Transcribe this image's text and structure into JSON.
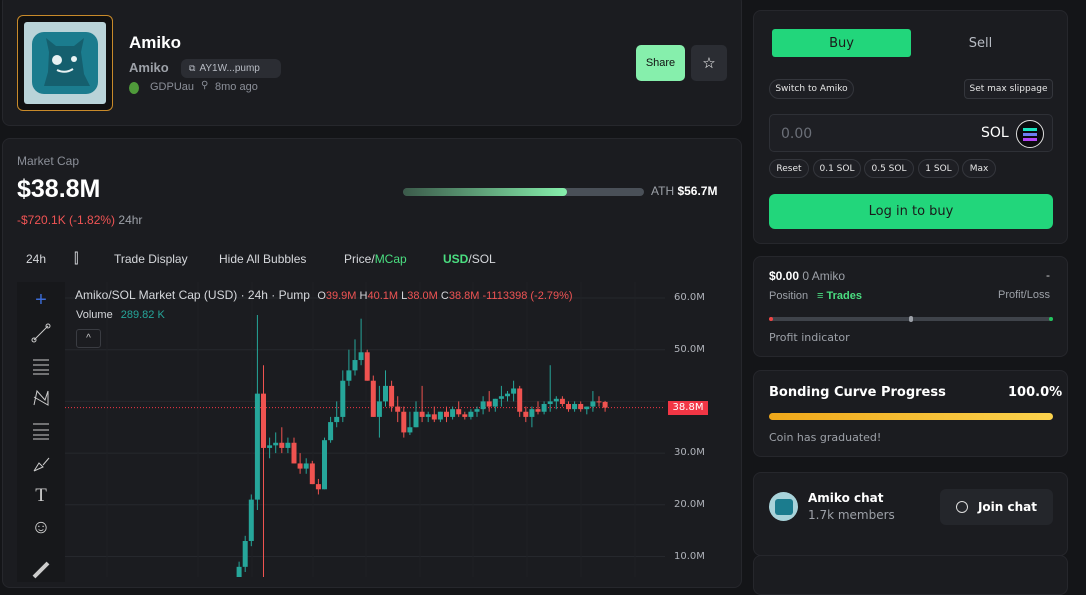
{
  "token": {
    "name": "Amiko",
    "symbol": "Amiko",
    "address_short": "AY1W...pump",
    "creator": "GDPUau",
    "age": "8mo ago",
    "share_label": "Share",
    "favorite_icon": "star-icon"
  },
  "market": {
    "label": "Market Cap",
    "value": "$38.8M",
    "change": "-$720.1K (-1.82%)",
    "change_period": "24hr",
    "ath_label": "ATH",
    "ath_value": "$56.7M",
    "ath_progress_pct": 68
  },
  "chart_toolbar": {
    "interval": "24h",
    "trade_display": "Trade Display",
    "hide_bubbles": "Hide All Bubbles",
    "price": "Price",
    "mcap": "MCap",
    "usd": "USD",
    "sol": "SOL",
    "slash": "/"
  },
  "chart_legend": {
    "title": "Amiko/SOL Market Cap (USD) · 24h · Pump",
    "o_label": "O",
    "o": "39.9M",
    "h_label": "H",
    "h": "40.1M",
    "l_label": "L",
    "l": "38.0M",
    "c_label": "C",
    "c": "38.8M",
    "change": "-1113398 (-2.79%)",
    "volume_label": "Volume",
    "volume": "289.82 K",
    "collapse_icon": "chevron-up-icon"
  },
  "chart_data": {
    "type": "candlestick",
    "ylim": [
      0,
      60
    ],
    "y_ticks": [
      "10.0M",
      "20.0M",
      "30.0M",
      "40.0M",
      "50.0M",
      "60.0M"
    ],
    "current_label": "38.8M",
    "current_value": 38.8,
    "up_color": "#26a69a",
    "down_color": "#ef5350",
    "ohlc": [
      [
        3,
        6,
        2,
        5
      ],
      [
        5,
        9,
        4,
        8
      ],
      [
        8,
        14,
        7,
        13
      ],
      [
        13,
        22,
        12,
        21
      ],
      [
        21,
        56.7,
        19,
        41.5
      ],
      [
        41.5,
        47,
        0,
        31
      ],
      [
        31,
        33,
        29,
        31.5
      ],
      [
        31.5,
        34,
        30,
        32
      ],
      [
        32,
        35,
        30,
        31
      ],
      [
        31,
        33,
        30,
        32
      ],
      [
        32,
        33,
        28,
        28
      ],
      [
        28,
        30,
        26,
        27
      ],
      [
        27,
        29,
        26,
        28
      ],
      [
        28,
        28.5,
        24,
        24
      ],
      [
        24,
        25,
        22,
        23
      ],
      [
        23,
        33,
        23,
        32.5
      ],
      [
        32.5,
        37,
        32,
        36
      ],
      [
        36,
        40,
        35,
        37
      ],
      [
        37,
        46,
        36,
        44
      ],
      [
        44,
        50,
        43,
        46
      ],
      [
        46,
        52,
        45,
        48
      ],
      [
        48,
        56,
        47,
        49.5
      ],
      [
        49.5,
        50,
        44,
        44
      ],
      [
        44,
        45,
        37,
        37
      ],
      [
        37,
        43,
        33,
        40
      ],
      [
        40,
        46,
        39,
        43
      ],
      [
        43,
        44,
        38,
        39
      ],
      [
        39,
        41,
        36,
        38
      ],
      [
        38,
        39,
        33,
        34
      ],
      [
        34,
        38,
        33.5,
        35
      ],
      [
        35,
        40,
        35,
        38
      ],
      [
        38,
        43,
        36,
        37
      ],
      [
        37,
        38,
        36,
        37.5
      ],
      [
        37.5,
        39,
        36,
        36.5
      ],
      [
        36.5,
        38,
        36,
        38
      ],
      [
        38,
        39,
        36,
        37
      ],
      [
        37,
        39,
        36.5,
        38.5
      ],
      [
        38.5,
        40,
        37,
        37.5
      ],
      [
        37.5,
        38,
        36.5,
        37
      ],
      [
        37,
        38.5,
        36.5,
        38
      ],
      [
        38,
        39,
        37,
        38.5
      ],
      [
        38.5,
        41,
        37.5,
        40
      ],
      [
        40,
        42,
        38,
        39
      ],
      [
        39,
        40.5,
        38,
        40.5
      ],
      [
        40.5,
        43,
        39,
        41
      ],
      [
        41,
        42,
        40,
        41.5
      ],
      [
        41.5,
        44,
        40,
        42.5
      ],
      [
        42.5,
        43,
        37,
        38
      ],
      [
        38,
        39,
        36,
        37
      ],
      [
        37,
        39,
        35,
        38.5
      ],
      [
        38.5,
        40,
        37.5,
        38
      ],
      [
        38,
        40,
        37.5,
        39.5
      ],
      [
        39.5,
        47,
        38,
        40
      ],
      [
        40,
        41,
        38.5,
        40.5
      ],
      [
        40.5,
        41,
        39,
        39.5
      ],
      [
        39.5,
        40,
        38,
        38.5
      ],
      [
        38.5,
        40,
        38,
        39.5
      ],
      [
        39.5,
        40,
        38,
        38.5
      ],
      [
        38.5,
        39,
        37.5,
        39
      ],
      [
        39,
        42,
        38,
        40
      ],
      [
        40,
        41,
        39,
        39.9
      ],
      [
        39.9,
        40.1,
        38,
        38.8
      ]
    ]
  },
  "trade": {
    "buy": "Buy",
    "sell": "Sell",
    "switch": "Switch to Amiko",
    "slippage": "Set max slippage",
    "amount_placeholder": "0.00",
    "currency": "SOL",
    "chips": [
      "Reset",
      "0.1 SOL",
      "0.5 SOL",
      "1 SOL",
      "Max"
    ],
    "login": "Log in to buy"
  },
  "position": {
    "value": "$0.00",
    "amount": "0 Amiko",
    "pl_value": "-",
    "position_label": "Position",
    "trades_label": "Trades",
    "pl_label": "Profit/Loss",
    "indicator_label": "Profit indicator"
  },
  "bonding": {
    "title": "Bonding Curve Progress",
    "percent": "100.0%",
    "progress": 100,
    "note": "Coin has graduated!"
  },
  "chat": {
    "name": "Amiko chat",
    "members": "1.7k members",
    "join": "Join chat"
  }
}
